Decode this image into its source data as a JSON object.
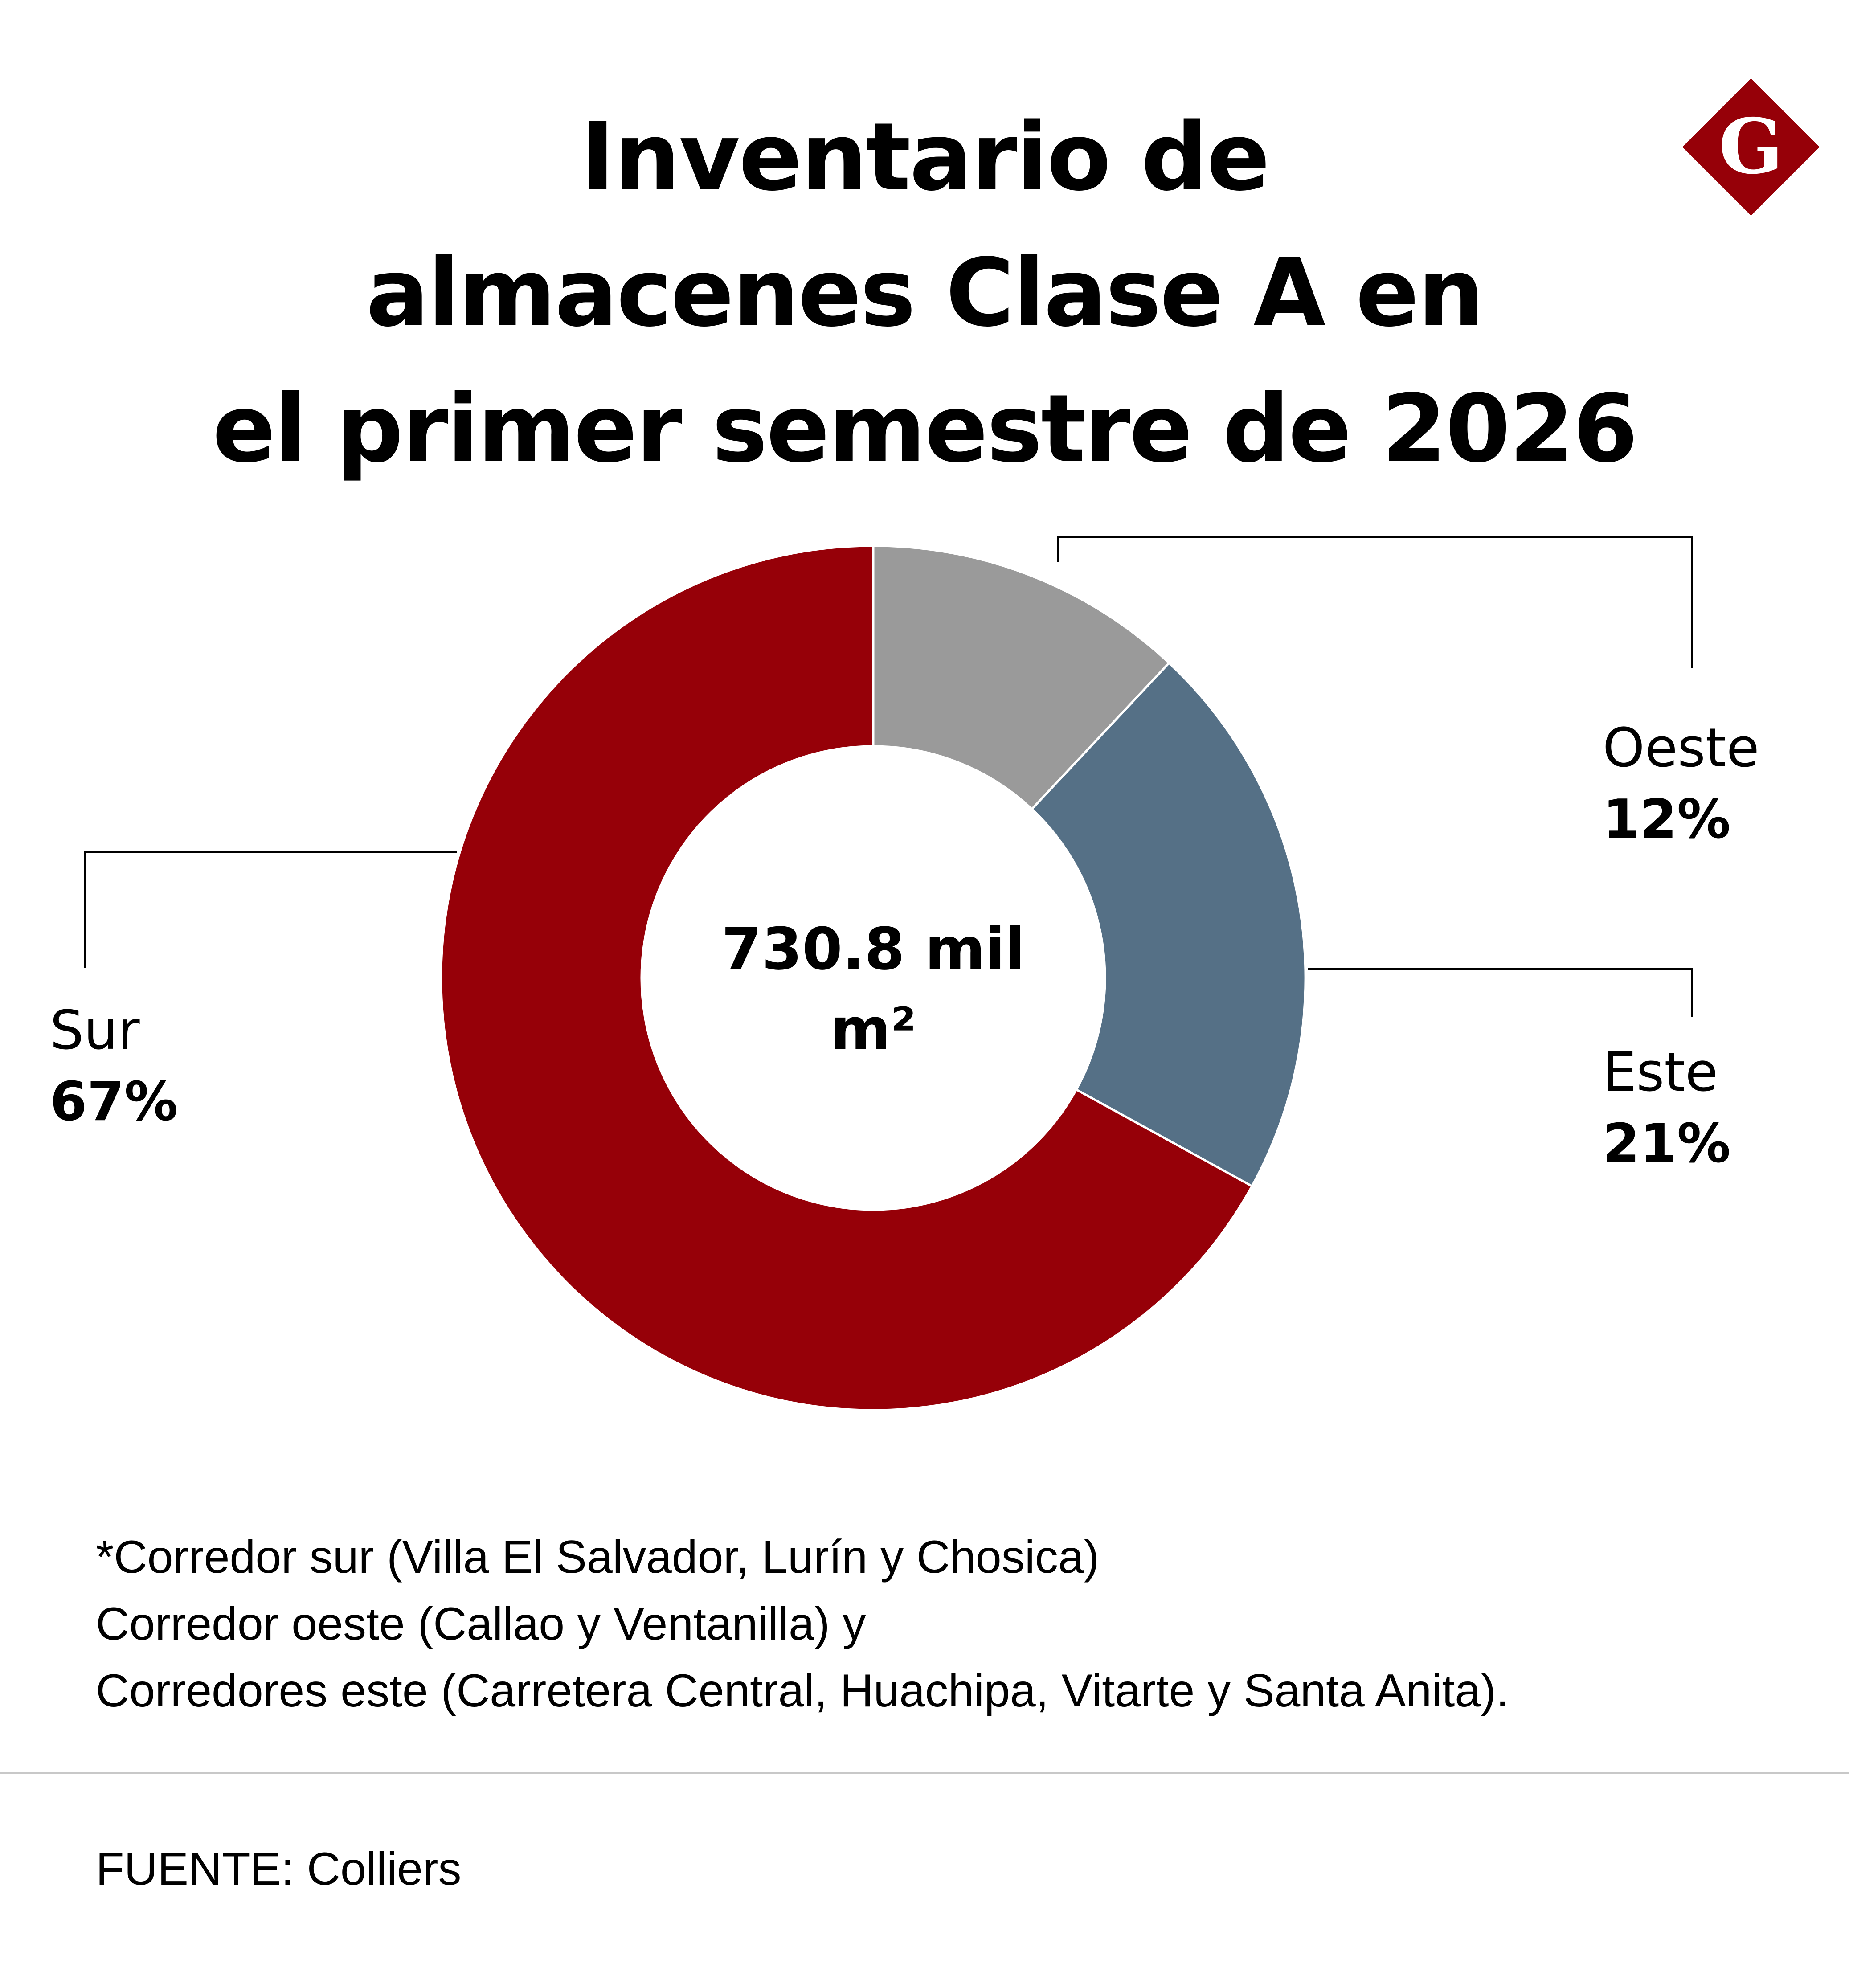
{
  "chart_data": {
    "type": "pie",
    "variant": "donut",
    "title": [
      "Inventario de",
      "almacenes Clase A en",
      "el primer semestre de 2026"
    ],
    "center_value": "730.8 mil",
    "center_unit": "m²",
    "start_angle_deg": 0,
    "direction": "clockwise",
    "slices": [
      {
        "name": "Oeste",
        "value": 12,
        "label": "12%",
        "color": "#9a9a9a"
      },
      {
        "name": "Este",
        "value": 21,
        "label": "21%",
        "color": "#557086"
      },
      {
        "name": "Sur",
        "value": 67,
        "label": "67%",
        "color": "#960008"
      }
    ]
  },
  "notes": [
    "*Corredor sur (Villa El Salvador, Lurín y Chosica)",
    "Corredor oeste (Callao y Ventanilla) y",
    "Corredores este (Carretera Central, Huachipa, Vitarte y Santa Anita)."
  ],
  "source": "FUENTE: Colliers",
  "logo": {
    "letter": "G",
    "color": "#960008",
    "icon": "gestion-logo-icon"
  }
}
